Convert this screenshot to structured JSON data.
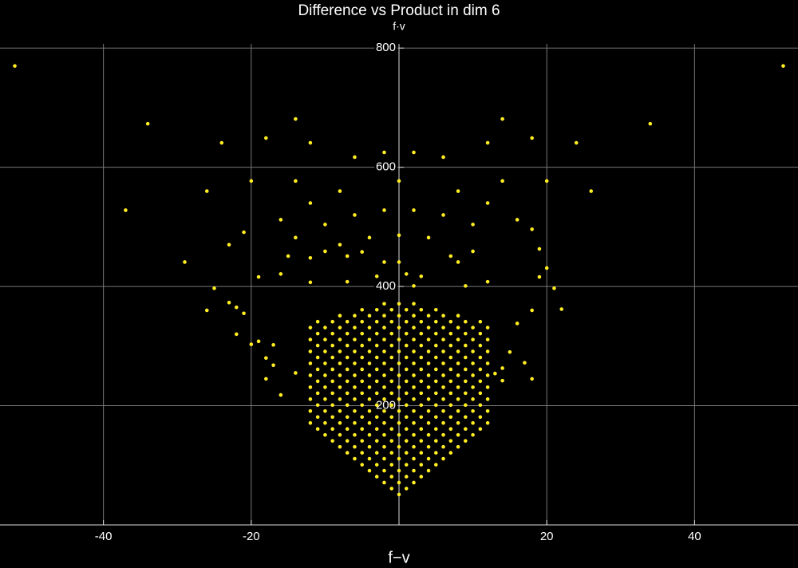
{
  "chart_data": {
    "type": "scatter",
    "title": "Difference vs Product in dim 6",
    "y_label": "f·v",
    "x_label": "f−v",
    "color": "#ffee22",
    "grid": true,
    "xlim": [
      -54,
      54
    ],
    "ylim": [
      0,
      807
    ],
    "xticks": [
      -40,
      -20,
      20,
      40
    ],
    "yticks": [
      200,
      400,
      600,
      800
    ],
    "x": [
      -52,
      52,
      -34,
      34,
      -37,
      -29,
      -24,
      24,
      -26,
      26,
      -18,
      18,
      -14,
      14,
      -12,
      12,
      -6,
      6,
      -2,
      2,
      0,
      -20,
      20,
      -14,
      14,
      -8,
      8,
      -12,
      12,
      -2,
      2,
      -6,
      6,
      -16,
      16,
      -10,
      10,
      -21,
      18,
      0,
      -14,
      4,
      -4,
      -23,
      19,
      -8,
      -5,
      -10,
      10,
      -15,
      7,
      -12,
      -7,
      -2,
      0,
      8,
      20,
      -16,
      -19,
      -3,
      3,
      1,
      19,
      -12,
      -7,
      12,
      9,
      21,
      -25,
      2,
      -26,
      22,
      -23,
      -22,
      -21,
      -22,
      -20,
      18,
      16,
      -18,
      -17,
      -18,
      15,
      17,
      18,
      14,
      13,
      14,
      -16,
      -14,
      -19,
      -17,
      0,
      0,
      0,
      0,
      0,
      0,
      0,
      0,
      0,
      0,
      0,
      0,
      0,
      0,
      0,
      0,
      0,
      -1,
      -1,
      -1,
      -1,
      -1,
      -1,
      -1,
      -1,
      -1,
      -1,
      -1,
      -1,
      -1,
      -1,
      -1,
      -1,
      1,
      1,
      1,
      1,
      1,
      1,
      1,
      1,
      1,
      1,
      1,
      1,
      1,
      1,
      1,
      1,
      -2,
      -2,
      -2,
      -2,
      -2,
      -2,
      -2,
      -2,
      -2,
      -2,
      -2,
      -2,
      -2,
      -2,
      -2,
      -2,
      2,
      2,
      2,
      2,
      2,
      2,
      2,
      2,
      2,
      2,
      2,
      2,
      2,
      2,
      2,
      2,
      -3,
      -3,
      -3,
      -3,
      -3,
      -3,
      -3,
      -3,
      -3,
      -3,
      -3,
      -3,
      -3,
      -3,
      -3,
      3,
      3,
      3,
      3,
      3,
      3,
      3,
      3,
      3,
      3,
      3,
      3,
      3,
      3,
      3,
      -4,
      -4,
      -4,
      -4,
      -4,
      -4,
      -4,
      -4,
      -4,
      -4,
      -4,
      -4,
      -4,
      -4,
      4,
      4,
      4,
      4,
      4,
      4,
      4,
      4,
      4,
      4,
      4,
      4,
      4,
      4,
      -5,
      -5,
      -5,
      -5,
      -5,
      -5,
      -5,
      -5,
      -5,
      -5,
      -5,
      -5,
      -5,
      -5,
      5,
      5,
      5,
      5,
      5,
      5,
      5,
      5,
      5,
      5,
      5,
      5,
      5,
      5,
      -6,
      -6,
      -6,
      -6,
      -6,
      -6,
      -6,
      -6,
      -6,
      -6,
      -6,
      -6,
      -6,
      6,
      6,
      6,
      6,
      6,
      6,
      6,
      6,
      6,
      6,
      6,
      6,
      6,
      -7,
      -7,
      -7,
      -7,
      -7,
      -7,
      -7,
      -7,
      -7,
      -7,
      -7,
      -7,
      7,
      7,
      7,
      7,
      7,
      7,
      7,
      7,
      7,
      7,
      7,
      7,
      -8,
      -8,
      -8,
      -8,
      -8,
      -8,
      -8,
      -8,
      -8,
      -8,
      -8,
      -8,
      8,
      8,
      8,
      8,
      8,
      8,
      8,
      8,
      8,
      8,
      8,
      8,
      -9,
      -9,
      -9,
      -9,
      -9,
      -9,
      -9,
      -9,
      -9,
      -9,
      -9,
      9,
      9,
      9,
      9,
      9,
      9,
      9,
      9,
      9,
      9,
      9,
      -10,
      -10,
      -10,
      -10,
      -10,
      -10,
      -10,
      -10,
      -10,
      -10,
      10,
      10,
      10,
      10,
      10,
      10,
      10,
      10,
      10,
      10,
      -11,
      -11,
      -11,
      -11,
      -11,
      -11,
      -11,
      -11,
      -11,
      -11,
      11,
      11,
      11,
      11,
      11,
      11,
      11,
      11,
      11,
      11,
      -12,
      -12,
      -12,
      -12,
      -12,
      -12,
      -12,
      -12,
      -12,
      12,
      12,
      12,
      12,
      12,
      12,
      12,
      12,
      12
    ],
    "values": [
      770,
      770,
      673,
      673,
      528,
      441,
      641,
      641,
      560,
      560,
      649,
      649,
      681,
      681,
      641,
      641,
      617,
      617,
      625,
      625,
      577,
      577,
      577,
      577,
      577,
      560,
      560,
      540,
      540,
      528,
      528,
      520,
      520,
      512,
      512,
      504,
      504,
      491,
      496,
      486,
      482,
      482,
      482,
      470,
      463,
      470,
      458,
      459,
      459,
      451,
      451,
      448,
      451,
      441,
      441,
      441,
      431,
      421,
      416,
      417,
      417,
      421,
      416,
      407,
      408,
      408,
      401,
      397,
      397,
      401,
      360,
      362,
      373,
      365,
      355,
      320,
      303,
      360,
      338,
      280,
      268,
      245,
      290,
      272,
      245,
      263,
      254,
      242,
      218,
      255,
      308,
      302,
      51,
      71,
      91,
      111,
      131,
      151,
      171,
      191,
      211,
      231,
      251,
      271,
      291,
      311,
      331,
      351,
      371,
      61,
      81,
      101,
      121,
      141,
      161,
      181,
      201,
      221,
      241,
      261,
      281,
      301,
      321,
      341,
      361,
      61,
      81,
      101,
      121,
      141,
      161,
      181,
      201,
      221,
      241,
      261,
      281,
      301,
      321,
      341,
      361,
      71,
      91,
      111,
      131,
      151,
      171,
      191,
      211,
      231,
      251,
      271,
      291,
      311,
      331,
      351,
      371,
      71,
      91,
      111,
      131,
      151,
      171,
      191,
      211,
      231,
      251,
      271,
      291,
      311,
      331,
      351,
      371,
      81,
      101,
      121,
      141,
      161,
      181,
      201,
      221,
      241,
      261,
      281,
      301,
      321,
      341,
      361,
      81,
      101,
      121,
      141,
      161,
      181,
      201,
      221,
      241,
      261,
      281,
      301,
      321,
      341,
      361,
      91,
      111,
      131,
      151,
      171,
      191,
      211,
      231,
      251,
      271,
      291,
      311,
      331,
      351,
      91,
      111,
      131,
      151,
      171,
      191,
      211,
      231,
      251,
      271,
      291,
      311,
      331,
      351,
      101,
      121,
      141,
      161,
      181,
      201,
      221,
      241,
      261,
      281,
      301,
      321,
      341,
      361,
      101,
      121,
      141,
      161,
      181,
      201,
      221,
      241,
      261,
      281,
      301,
      321,
      341,
      361,
      111,
      131,
      151,
      171,
      191,
      211,
      231,
      251,
      271,
      291,
      311,
      331,
      351,
      111,
      131,
      151,
      171,
      191,
      211,
      231,
      251,
      271,
      291,
      311,
      331,
      351,
      121,
      141,
      161,
      181,
      201,
      221,
      241,
      261,
      281,
      301,
      321,
      341,
      121,
      141,
      161,
      181,
      201,
      221,
      241,
      261,
      281,
      301,
      321,
      341,
      131,
      151,
      171,
      191,
      211,
      231,
      251,
      271,
      291,
      311,
      331,
      351,
      131,
      151,
      171,
      191,
      211,
      231,
      251,
      271,
      291,
      311,
      331,
      351,
      141,
      161,
      181,
      201,
      221,
      241,
      261,
      281,
      301,
      321,
      341,
      141,
      161,
      181,
      201,
      221,
      241,
      261,
      281,
      301,
      321,
      341,
      151,
      171,
      191,
      211,
      231,
      251,
      271,
      291,
      311,
      331,
      151,
      171,
      191,
      211,
      231,
      251,
      271,
      291,
      311,
      331,
      161,
      181,
      201,
      221,
      241,
      261,
      281,
      301,
      321,
      341,
      161,
      181,
      201,
      221,
      241,
      261,
      281,
      301,
      321,
      341,
      171,
      191,
      211,
      231,
      251,
      271,
      291,
      311,
      331,
      171,
      191,
      211,
      231,
      251,
      271,
      291,
      311,
      331
    ]
  }
}
